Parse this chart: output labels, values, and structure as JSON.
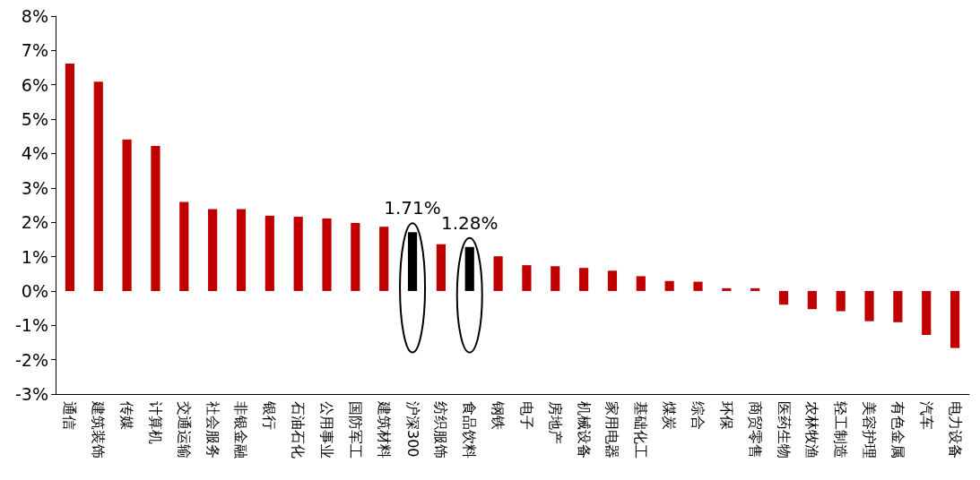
{
  "chart_data": {
    "type": "bar",
    "categories": [
      "通信",
      "建筑装饰",
      "传媒",
      "计算机",
      "交通运输",
      "社会服务",
      "非银金融",
      "银行",
      "石油石化",
      "公用事业",
      "国防军工",
      "建筑材料",
      "沪深300",
      "纺织服饰",
      "食品饮料",
      "钢铁",
      "电子",
      "房地产",
      "机械设备",
      "家用电器",
      "基础化工",
      "煤炭",
      "综合",
      "环保",
      "商贸零售",
      "医药生物",
      "农林牧渔",
      "轻工制造",
      "美容护理",
      "有色金属",
      "汽车",
      "电力设备"
    ],
    "values": [
      6.62,
      6.09,
      4.41,
      4.22,
      2.59,
      2.38,
      2.38,
      2.19,
      2.16,
      2.11,
      1.98,
      1.87,
      1.71,
      1.36,
      1.28,
      1.01,
      0.75,
      0.72,
      0.67,
      0.59,
      0.43,
      0.29,
      0.27,
      0.08,
      0.08,
      -0.4,
      -0.53,
      -0.59,
      -0.88,
      -0.91,
      -1.28,
      -1.66
    ],
    "colors": [
      "#c00000",
      "#c00000",
      "#c00000",
      "#c00000",
      "#c00000",
      "#c00000",
      "#c00000",
      "#c00000",
      "#c00000",
      "#c00000",
      "#c00000",
      "#c00000",
      "#000000",
      "#c00000",
      "#000000",
      "#c00000",
      "#c00000",
      "#c00000",
      "#c00000",
      "#c00000",
      "#c00000",
      "#c00000",
      "#c00000",
      "#c00000",
      "#c00000",
      "#c00000",
      "#c00000",
      "#c00000",
      "#c00000",
      "#c00000",
      "#c00000",
      "#c00000"
    ],
    "value_labels": [
      null,
      null,
      null,
      null,
      null,
      null,
      null,
      null,
      null,
      null,
      null,
      null,
      "1.71%",
      null,
      "1.28%",
      null,
      null,
      null,
      null,
      null,
      null,
      null,
      null,
      null,
      null,
      null,
      null,
      null,
      null,
      null,
      null,
      null
    ],
    "ylim": [
      -3,
      8
    ],
    "yticks": [
      {
        "value": -3,
        "label": "-3%"
      },
      {
        "value": -2,
        "label": "-2%"
      },
      {
        "value": -1,
        "label": "-1%"
      },
      {
        "value": 0,
        "label": "0%"
      },
      {
        "value": 1,
        "label": "1%"
      },
      {
        "value": 2,
        "label": "2%"
      },
      {
        "value": 3,
        "label": "3%"
      },
      {
        "value": 4,
        "label": "4%"
      },
      {
        "value": 5,
        "label": "5%"
      },
      {
        "value": 6,
        "label": "6%"
      },
      {
        "value": 7,
        "label": "7%"
      },
      {
        "value": 8,
        "label": "8%"
      }
    ],
    "grid": false
  }
}
